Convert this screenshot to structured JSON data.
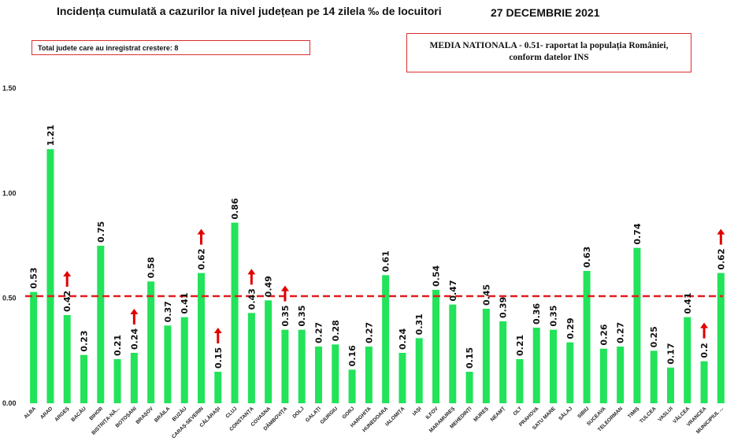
{
  "header": {
    "title": "Incidența cumulată a cazurilor la nivel județean pe 14 zilela ‰ de locuitori",
    "date": "27 DECEMBRIE 2021"
  },
  "info": {
    "total_increase": "Total judete care au inregistrat crestere: 8",
    "national_line1": "MEDIA NATIONALA - 0.51-  raportat la populația României,",
    "national_line2": "conform datelor INS"
  },
  "colors": {
    "bar": "#22e35a",
    "mean_line": "#e11d1d",
    "arrow": "#e00000",
    "box_border": "#d9302c"
  },
  "chart_data": {
    "type": "bar",
    "categories": [
      "ALBA",
      "ARAD",
      "ARGEȘ",
      "BACĂU",
      "BIHOR",
      "BISTRIȚA-NĂSĂUD",
      "BOTOȘANI",
      "BRAȘOV",
      "BRĂILA",
      "BUZĂU",
      "CARAȘ-SEVERIN",
      "CĂLĂRAȘI",
      "CLUJ",
      "CONSTANȚA",
      "COVASNA",
      "DÂMBOVIȚA",
      "DOLJ",
      "GALAȚI",
      "GIURGIU",
      "GORJ",
      "HARGHITA",
      "HUNEDOARA",
      "IALOMIȚA",
      "IAȘI",
      "ILFOV",
      "MARAMUREȘ",
      "MEHEDINȚI",
      "MUREȘ",
      "NEAMȚ",
      "OLT",
      "PRAHOVA",
      "SATU MARE",
      "SĂLAJ",
      "SIBIU",
      "SUCEAVA",
      "TELEORMAN",
      "TIMIȘ",
      "TULCEA",
      "VASLUI",
      "VÂLCEA",
      "VRANCEA",
      "MUNICIPIUL BUCUREȘTI"
    ],
    "values": [
      0.53,
      1.21,
      0.42,
      0.23,
      0.75,
      0.21,
      0.24,
      0.58,
      0.37,
      0.41,
      0.62,
      0.15,
      0.86,
      0.43,
      0.49,
      0.35,
      0.35,
      0.27,
      0.28,
      0.16,
      0.27,
      0.61,
      0.24,
      0.31,
      0.54,
      0.47,
      0.15,
      0.45,
      0.39,
      0.21,
      0.36,
      0.35,
      0.29,
      0.63,
      0.26,
      0.27,
      0.74,
      0.25,
      0.17,
      0.41,
      0.2,
      0.62
    ],
    "value_labels": [
      "0.53",
      "1.21",
      "0.42",
      "0.23",
      "0.75",
      "0.21",
      "0.24",
      "0.58",
      "0.37",
      "0.41",
      "0.62",
      "0.15",
      "0.86",
      "0.43",
      "0.49",
      "0.35",
      "0.35",
      "0.27",
      "0.28",
      "0.16",
      "0.27",
      "0.61",
      "0.24",
      "0.31",
      "0.54",
      "0.47",
      "0.15",
      "0.45",
      "0.39",
      "0.21",
      "0.36",
      "0.35",
      "0.29",
      "0.63",
      "0.26",
      "0.27",
      "0.74",
      "0.25",
      "0.17",
      "0.41",
      "0.2",
      "0.62"
    ],
    "increase": [
      "ARGEȘ",
      "BOTOȘANI",
      "CARAȘ-SEVERIN",
      "CĂLĂRAȘI",
      "CONSTANȚA",
      "DÂMBOVIȚA",
      "VRANCEA",
      "MUNICIPIUL BUCUREȘTI"
    ],
    "national_mean": 0.51,
    "ylim": [
      0,
      1.5
    ],
    "yticks": [
      "0.00",
      "0.50",
      "1.00",
      "1.50"
    ],
    "ytick_values": [
      0,
      0.5,
      1.0,
      1.5
    ],
    "grid": false,
    "legend": "none"
  }
}
